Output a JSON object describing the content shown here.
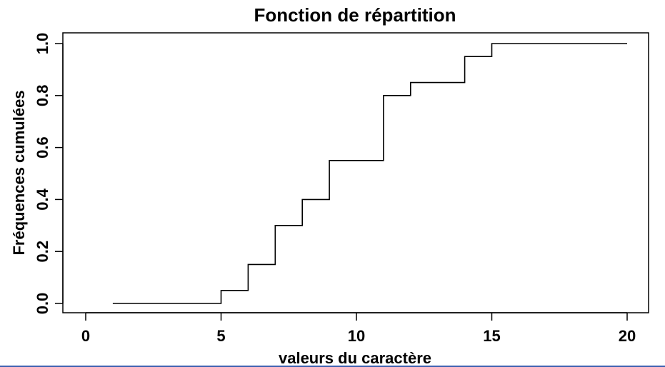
{
  "chart_data": {
    "type": "line",
    "step": true,
    "title": "Fonction de répartition",
    "xlabel": "valeurs du caractère",
    "ylabel": "Fréquences cumulées",
    "xlim": [
      0,
      20
    ],
    "ylim": [
      0,
      1
    ],
    "x_ticks": [
      0,
      5,
      10,
      15,
      20
    ],
    "y_ticks": [
      0.0,
      0.2,
      0.4,
      0.6,
      0.8,
      1.0
    ],
    "x_tick_labels": [
      "0",
      "5",
      "10",
      "15",
      "20"
    ],
    "y_tick_labels": [
      "0.0",
      "0.2",
      "0.4",
      "0.6",
      "0.8",
      "1.0"
    ],
    "grid": false,
    "legend": "none",
    "line_color": "#000000",
    "series": [
      {
        "x": [
          1,
          5,
          6,
          7,
          8,
          9,
          11,
          12,
          14,
          15,
          20
        ],
        "y": [
          0.0,
          0.05,
          0.15,
          0.3,
          0.4,
          0.55,
          0.8,
          0.85,
          0.95,
          1.0,
          1.0
        ]
      }
    ]
  }
}
